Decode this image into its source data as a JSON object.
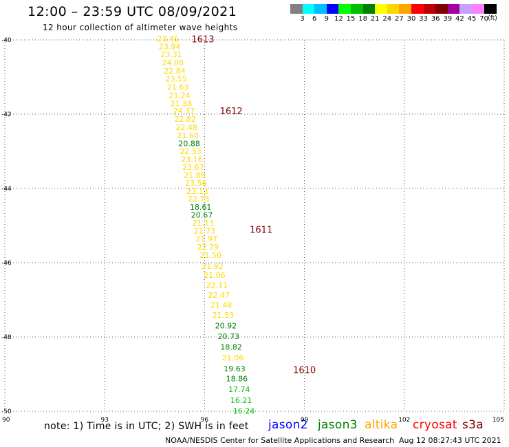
{
  "header": {
    "title": "12:00 – 23:59 UTC 08/09/2021",
    "subtitle": "12 hour collection of altimeter wave heights"
  },
  "legend": {
    "colors": [
      "#808080",
      "#00ffff",
      "#00bfff",
      "#0000ff",
      "#00ff00",
      "#00c000",
      "#008000",
      "#ffff00",
      "#ffd700",
      "#ffa500",
      "#ff0000",
      "#c00000",
      "#800000",
      "#a000a0",
      "#c8a0ff",
      "#ff80ff",
      "#000000"
    ],
    "labels": [
      "3",
      "6",
      "9",
      "12",
      "15",
      "18",
      "21",
      "24",
      "27",
      "30",
      "33",
      "36",
      "39",
      "42",
      "45",
      "70"
    ],
    "unit": "(ft)"
  },
  "chart_data": {
    "type": "scatter",
    "xlim": [
      90,
      105
    ],
    "ylim": [
      -50,
      -40
    ],
    "xticks": [
      "90",
      "93",
      "96",
      "99",
      "102",
      "105"
    ],
    "yticks": [
      "-40",
      "-42",
      "-44",
      "-46",
      "-48",
      "-50"
    ],
    "grid": true,
    "points": [
      {
        "x": 94.9,
        "y": -39.97,
        "label": "23.46",
        "color": "#ffd700"
      },
      {
        "x": 94.95,
        "y": -40.18,
        "label": "23.94",
        "color": "#ffd700"
      },
      {
        "x": 95.0,
        "y": -40.39,
        "label": "23.31",
        "color": "#ffd700"
      },
      {
        "x": 95.05,
        "y": -40.61,
        "label": "24.08",
        "color": "#ffd700"
      },
      {
        "x": 95.1,
        "y": -40.83,
        "label": "22.84",
        "color": "#ffd700"
      },
      {
        "x": 95.15,
        "y": -41.05,
        "label": "23.55",
        "color": "#ffd700"
      },
      {
        "x": 95.2,
        "y": -41.27,
        "label": "21.63",
        "color": "#ffd700"
      },
      {
        "x": 95.25,
        "y": -41.49,
        "label": "21.24",
        "color": "#ffd700"
      },
      {
        "x": 95.3,
        "y": -41.71,
        "label": "21.38",
        "color": "#ffd700"
      },
      {
        "x": 95.38,
        "y": -41.91,
        "label": "24.37",
        "color": "#ffd700"
      },
      {
        "x": 95.42,
        "y": -42.13,
        "label": "22.82",
        "color": "#ffd700"
      },
      {
        "x": 95.46,
        "y": -42.35,
        "label": "22.48",
        "color": "#ffd700"
      },
      {
        "x": 95.5,
        "y": -42.57,
        "label": "21.60",
        "color": "#ffd700"
      },
      {
        "x": 95.54,
        "y": -42.79,
        "label": "20.88",
        "color": "#008000"
      },
      {
        "x": 95.58,
        "y": -43.0,
        "label": "22.53",
        "color": "#ffd700"
      },
      {
        "x": 95.62,
        "y": -43.21,
        "label": "23.16",
        "color": "#ffd700"
      },
      {
        "x": 95.66,
        "y": -43.43,
        "label": "23.67",
        "color": "#ffd700"
      },
      {
        "x": 95.7,
        "y": -43.64,
        "label": "21.88",
        "color": "#ffd700"
      },
      {
        "x": 95.74,
        "y": -43.85,
        "label": "23.56",
        "color": "#ffd700"
      },
      {
        "x": 95.78,
        "y": -44.07,
        "label": "23.13",
        "color": "#ffd700"
      },
      {
        "x": 95.82,
        "y": -44.28,
        "label": "22.75",
        "color": "#ffd700"
      },
      {
        "x": 95.88,
        "y": -44.5,
        "label": "18.61",
        "color": "#008000"
      },
      {
        "x": 95.92,
        "y": -44.71,
        "label": "20.67",
        "color": "#008000"
      },
      {
        "x": 95.96,
        "y": -44.93,
        "label": "21.13",
        "color": "#ffd700"
      },
      {
        "x": 96.0,
        "y": -45.14,
        "label": "21.73",
        "color": "#ffd700"
      },
      {
        "x": 96.06,
        "y": -45.35,
        "label": "21.97",
        "color": "#ffd700"
      },
      {
        "x": 96.1,
        "y": -45.57,
        "label": "22.79",
        "color": "#ffd700"
      },
      {
        "x": 96.18,
        "y": -45.8,
        "label": "21.50",
        "color": "#ffd700"
      },
      {
        "x": 96.24,
        "y": -46.09,
        "label": "21.92",
        "color": "#ffd700"
      },
      {
        "x": 96.3,
        "y": -46.33,
        "label": "21.06",
        "color": "#ffd700"
      },
      {
        "x": 96.37,
        "y": -46.6,
        "label": "22.11",
        "color": "#ffd700"
      },
      {
        "x": 96.43,
        "y": -46.87,
        "label": "22.47",
        "color": "#ffd700"
      },
      {
        "x": 96.5,
        "y": -47.14,
        "label": "21.48",
        "color": "#ffd700"
      },
      {
        "x": 96.56,
        "y": -47.41,
        "label": "21.53",
        "color": "#ffd700"
      },
      {
        "x": 96.64,
        "y": -47.69,
        "label": "20.92",
        "color": "#008000"
      },
      {
        "x": 96.72,
        "y": -47.98,
        "label": "20.73",
        "color": "#008000"
      },
      {
        "x": 96.8,
        "y": -48.27,
        "label": "18.82",
        "color": "#008000"
      },
      {
        "x": 96.85,
        "y": -48.56,
        "label": "21.06",
        "color": "#ffd700"
      },
      {
        "x": 96.9,
        "y": -48.85,
        "label": "19.63",
        "color": "#008000"
      },
      {
        "x": 96.97,
        "y": -49.12,
        "label": "18.86",
        "color": "#008000"
      },
      {
        "x": 97.04,
        "y": -49.41,
        "label": "17.74",
        "color": "#00c000"
      },
      {
        "x": 97.1,
        "y": -49.7,
        "label": "16.21",
        "color": "#00c000"
      },
      {
        "x": 97.18,
        "y": -49.99,
        "label": "16.24",
        "color": "#00c000"
      }
    ],
    "annotations": [
      {
        "x": 95.95,
        "y": -39.97,
        "label": "1613",
        "color": "#800000"
      },
      {
        "x": 96.8,
        "y": -41.91,
        "label": "1612",
        "color": "#800000"
      },
      {
        "x": 97.7,
        "y": -45.1,
        "label": "1611",
        "color": "#800000"
      },
      {
        "x": 99.0,
        "y": -48.88,
        "label": "1610",
        "color": "#800000"
      }
    ]
  },
  "footer": {
    "note": "note: 1) Time is in UTC; 2) SWH is in feet",
    "satellites": [
      {
        "name": "jason2",
        "color": "#0000ff"
      },
      {
        "name": "jason3",
        "color": "#008000"
      },
      {
        "name": "altika",
        "color": "#ffa500"
      },
      {
        "name": "cryosat",
        "color": "#ff0000"
      },
      {
        "name": "s3a",
        "color": "#800000"
      }
    ],
    "credit": "NOAA/NESDIS Center for Satellite Applications and Research",
    "timestamp": "Aug 12 08:27:43 UTC 2021"
  }
}
